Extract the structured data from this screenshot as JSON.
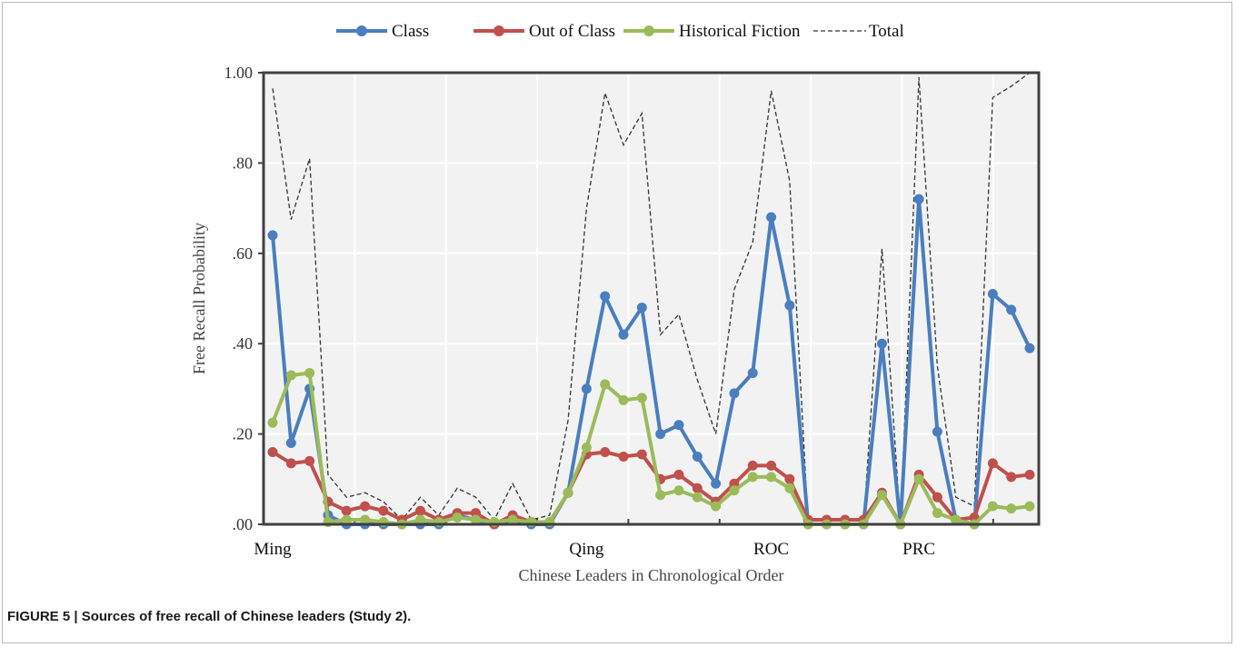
{
  "caption": "FIGURE 5 | Sources of free recall of Chinese leaders (Study 2).",
  "chart_data": {
    "type": "line",
    "title": "",
    "xlabel": "Chinese Leaders in Chronological Order",
    "ylabel": "Free Recall Probability",
    "ylim": [
      0,
      1
    ],
    "yticks": [
      0,
      0.2,
      0.4,
      0.6,
      0.8,
      1.0
    ],
    "ytick_labels": [
      ".00",
      ".20",
      ".40",
      ".60",
      ".80",
      "1.00"
    ],
    "grid": true,
    "legend_position": "top",
    "x": [
      1,
      2,
      3,
      4,
      5,
      6,
      7,
      8,
      9,
      10,
      11,
      12,
      13,
      14,
      15,
      16,
      17,
      18,
      19,
      20,
      21,
      22,
      23,
      24,
      25,
      26,
      27,
      28,
      29,
      30,
      31,
      32,
      33,
      34,
      35,
      36,
      37,
      38,
      39,
      40,
      41,
      42
    ],
    "group_labels": [
      {
        "label": "Ming",
        "x": 1
      },
      {
        "label": "Qing",
        "x": 18
      },
      {
        "label": "ROC",
        "x": 28
      },
      {
        "label": "PRC",
        "x": 36
      }
    ],
    "series": [
      {
        "name": "Class",
        "color": "#4a7ebf",
        "style": "line-marker",
        "values": [
          0.64,
          0.18,
          0.3,
          0.02,
          0.0,
          0.0,
          0.0,
          0.0,
          0.0,
          0.0,
          0.02,
          0.01,
          0.0,
          0.01,
          0.0,
          0.0,
          0.07,
          0.3,
          0.505,
          0.42,
          0.48,
          0.2,
          0.22,
          0.15,
          0.09,
          0.29,
          0.335,
          0.68,
          0.485,
          0.0,
          0.0,
          0.0,
          0.0,
          0.4,
          0.0,
          0.72,
          0.205,
          0.01,
          0.0,
          0.51,
          0.475,
          0.39
        ]
      },
      {
        "name": "Out of Class",
        "color": "#c0504d",
        "style": "line-marker",
        "values": [
          0.16,
          0.135,
          0.14,
          0.05,
          0.03,
          0.04,
          0.03,
          0.01,
          0.03,
          0.01,
          0.025,
          0.025,
          0.0,
          0.02,
          0.005,
          0.005,
          0.07,
          0.155,
          0.16,
          0.15,
          0.155,
          0.1,
          0.11,
          0.08,
          0.05,
          0.09,
          0.13,
          0.13,
          0.1,
          0.01,
          0.01,
          0.01,
          0.01,
          0.07,
          0.0,
          0.11,
          0.06,
          0.01,
          0.015,
          0.135,
          0.105,
          0.11
        ]
      },
      {
        "name": "Historical Fiction",
        "color": "#9bbb59",
        "style": "line-marker",
        "values": [
          0.225,
          0.33,
          0.335,
          0.005,
          0.01,
          0.01,
          0.005,
          0.0,
          0.01,
          0.005,
          0.015,
          0.01,
          0.005,
          0.01,
          0.005,
          0.005,
          0.07,
          0.17,
          0.31,
          0.275,
          0.28,
          0.065,
          0.075,
          0.06,
          0.04,
          0.075,
          0.105,
          0.105,
          0.08,
          0.0,
          0.0,
          0.0,
          0.0,
          0.065,
          0.0,
          0.1,
          0.025,
          0.01,
          0.0,
          0.04,
          0.035,
          0.04
        ]
      },
      {
        "name": "Total",
        "color": "#333333",
        "style": "dashed",
        "values": [
          0.965,
          0.675,
          0.81,
          0.11,
          0.06,
          0.07,
          0.05,
          0.01,
          0.06,
          0.02,
          0.08,
          0.06,
          0.01,
          0.09,
          0.01,
          0.02,
          0.23,
          0.7,
          0.955,
          0.84,
          0.91,
          0.42,
          0.465,
          0.32,
          0.2,
          0.52,
          0.625,
          0.96,
          0.76,
          0.0,
          0.0,
          0.0,
          0.0,
          0.61,
          0.0,
          0.99,
          0.35,
          0.06,
          0.04,
          0.945,
          0.97,
          1.0
        ]
      }
    ]
  }
}
